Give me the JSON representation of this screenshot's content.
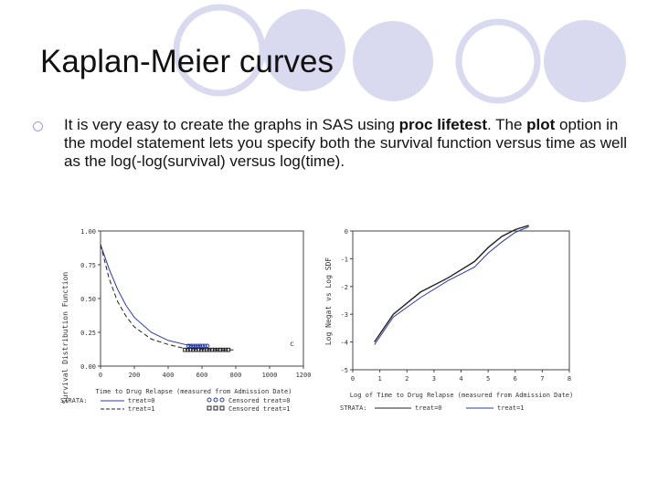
{
  "slide": {
    "title": "Kaplan-Meier curves",
    "bullet": {
      "part1": "It is very easy to create the graphs in SAS using ",
      "bold1": "proc lifetest",
      "part2": ". The ",
      "bold2": "plot",
      "part3": " option in the model statement lets you specify both the survival function versus time as well as the log(-log(survival) versus log(time)."
    }
  },
  "colors": {
    "circle": "#d9daf0",
    "circle_ring": "#9d9fd6",
    "series0": "#2a3aa8",
    "series1": "#222222"
  },
  "chart_data": [
    {
      "type": "line",
      "ylabel": "Survival Distribution Function",
      "xlabel": "Time to Drug Relapse (measured from Admission Date)",
      "x_ticks": [
        "0",
        "200",
        "400",
        "600",
        "800",
        "1000",
        "1200"
      ],
      "y_ticks": [
        "0.00",
        "0.25",
        "0.50",
        "0.75",
        "1.00"
      ],
      "xlim": [
        0,
        1200
      ],
      "ylim": [
        0,
        1
      ],
      "annotation": "c",
      "legend": {
        "title": "STRATA:",
        "entries": [
          "treat=0",
          "treat=1",
          "Censored treat=0",
          "Censored treat=1"
        ]
      },
      "series": [
        {
          "name": "treat=0",
          "x": [
            0,
            50,
            100,
            150,
            200,
            300,
            400,
            500,
            550,
            600
          ],
          "y": [
            0.9,
            0.72,
            0.57,
            0.45,
            0.36,
            0.25,
            0.19,
            0.16,
            0.15,
            0.15
          ]
        },
        {
          "name": "treat=1",
          "x": [
            0,
            50,
            100,
            150,
            200,
            300,
            400,
            500,
            700,
            800
          ],
          "y": [
            0.9,
            0.65,
            0.48,
            0.37,
            0.29,
            0.2,
            0.16,
            0.13,
            0.12,
            0.12
          ]
        }
      ]
    },
    {
      "type": "line",
      "ylabel": "Log Negat vs Log SDF",
      "xlabel": "Log of Time to Drug Relapse (measured from Admission Date)",
      "x_ticks": [
        "0",
        "1",
        "2",
        "3",
        "4",
        "5",
        "6",
        "7",
        "8"
      ],
      "y_ticks": [
        "-5",
        "-4",
        "-3",
        "-2",
        "-1",
        "0"
      ],
      "xlim": [
        0,
        8
      ],
      "ylim": [
        -5,
        0
      ],
      "legend": {
        "title": "STRATA:",
        "entries": [
          "treat=0",
          "treat=1"
        ]
      },
      "series": [
        {
          "name": "treat=0",
          "x": [
            0.8,
            1.5,
            2.5,
            3.5,
            4.5,
            5.0,
            5.5,
            6.0,
            6.5
          ],
          "y": [
            -4.0,
            -3.0,
            -2.2,
            -1.7,
            -1.1,
            -0.6,
            -0.2,
            0.05,
            0.2
          ]
        },
        {
          "name": "treat=1",
          "x": [
            0.8,
            1.5,
            2.5,
            3.5,
            4.5,
            5.0,
            5.5,
            6.0,
            6.5
          ],
          "y": [
            -4.1,
            -3.1,
            -2.4,
            -1.8,
            -1.3,
            -0.8,
            -0.4,
            -0.05,
            0.15
          ]
        }
      ]
    }
  ]
}
